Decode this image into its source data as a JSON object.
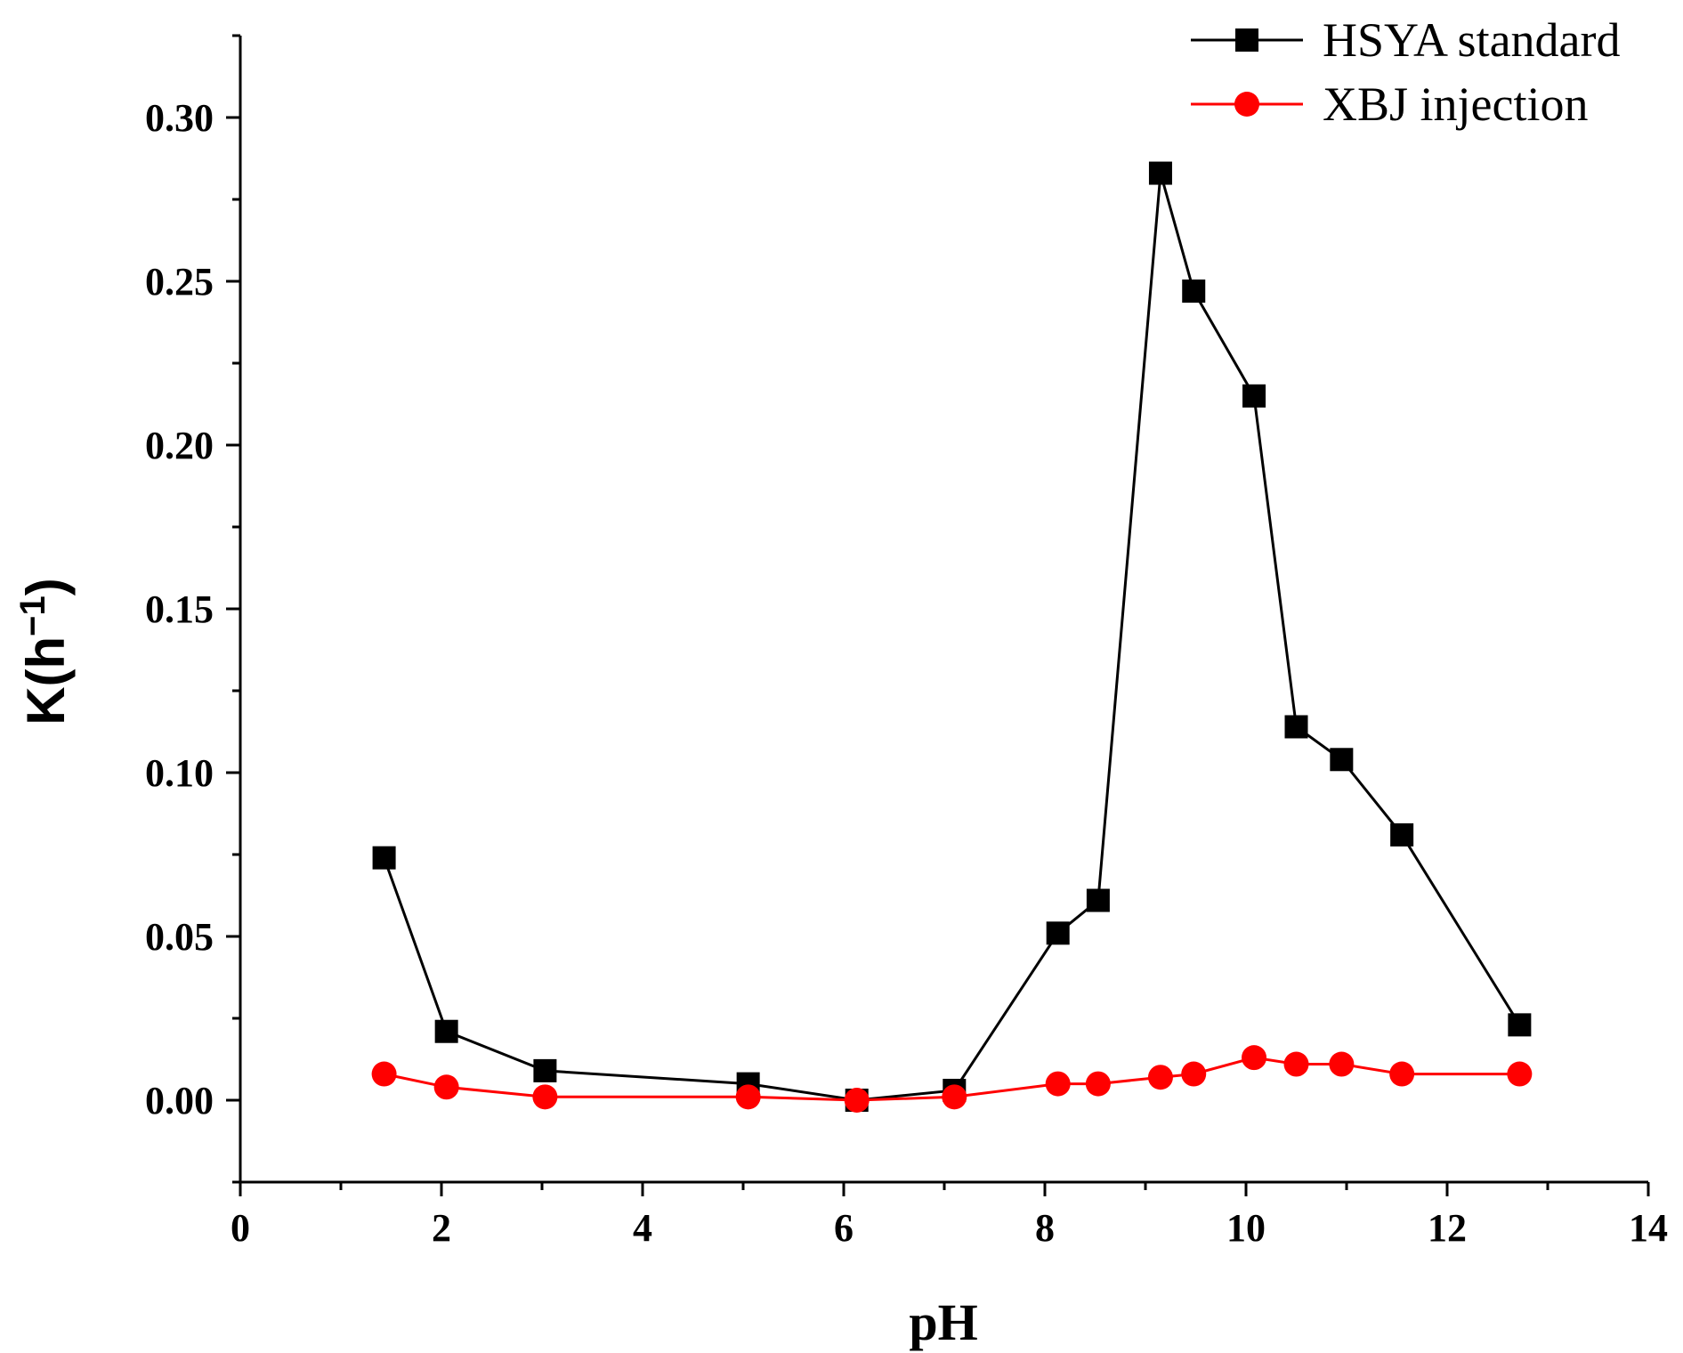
{
  "chart_data": {
    "type": "line",
    "title": "",
    "xlabel": "pH",
    "ylabel": "K(h",
    "ylabel_sup": "−1",
    "ylabel_close": ")",
    "xlim": [
      0,
      14
    ],
    "ylim": [
      -0.025,
      0.325
    ],
    "x_major_ticks": [
      0,
      2,
      4,
      6,
      8,
      10,
      12,
      14
    ],
    "x_tick_labels": [
      "0",
      "2",
      "4",
      "6",
      "8",
      "10",
      "12",
      "14"
    ],
    "y_major_ticks": [
      0.0,
      0.05,
      0.1,
      0.15,
      0.2,
      0.25,
      0.3
    ],
    "y_tick_labels": [
      "0.00",
      "0.05",
      "0.10",
      "0.15",
      "0.20",
      "0.25",
      "0.30"
    ],
    "grid": false,
    "legend_position": "top-right",
    "series": [
      {
        "name": "HSYA standard",
        "color": "#000000",
        "marker": "square",
        "x": [
          1.43,
          2.05,
          3.03,
          5.05,
          6.13,
          7.1,
          8.13,
          8.53,
          9.15,
          9.48,
          10.08,
          10.5,
          10.95,
          11.55,
          12.72
        ],
        "y": [
          0.074,
          0.021,
          0.009,
          0.005,
          0.0,
          0.003,
          0.051,
          0.061,
          0.283,
          0.247,
          0.215,
          0.114,
          0.104,
          0.081,
          0.023
        ]
      },
      {
        "name": "XBJ injection",
        "color": "#ff0000",
        "marker": "circle",
        "x": [
          1.43,
          2.05,
          3.03,
          5.05,
          6.13,
          7.1,
          8.13,
          8.53,
          9.15,
          9.48,
          10.08,
          10.5,
          10.95,
          11.55,
          12.72
        ],
        "y": [
          0.008,
          0.004,
          0.001,
          0.001,
          0.0,
          0.001,
          0.005,
          0.005,
          0.007,
          0.008,
          0.013,
          0.011,
          0.011,
          0.008,
          0.008
        ]
      }
    ]
  }
}
